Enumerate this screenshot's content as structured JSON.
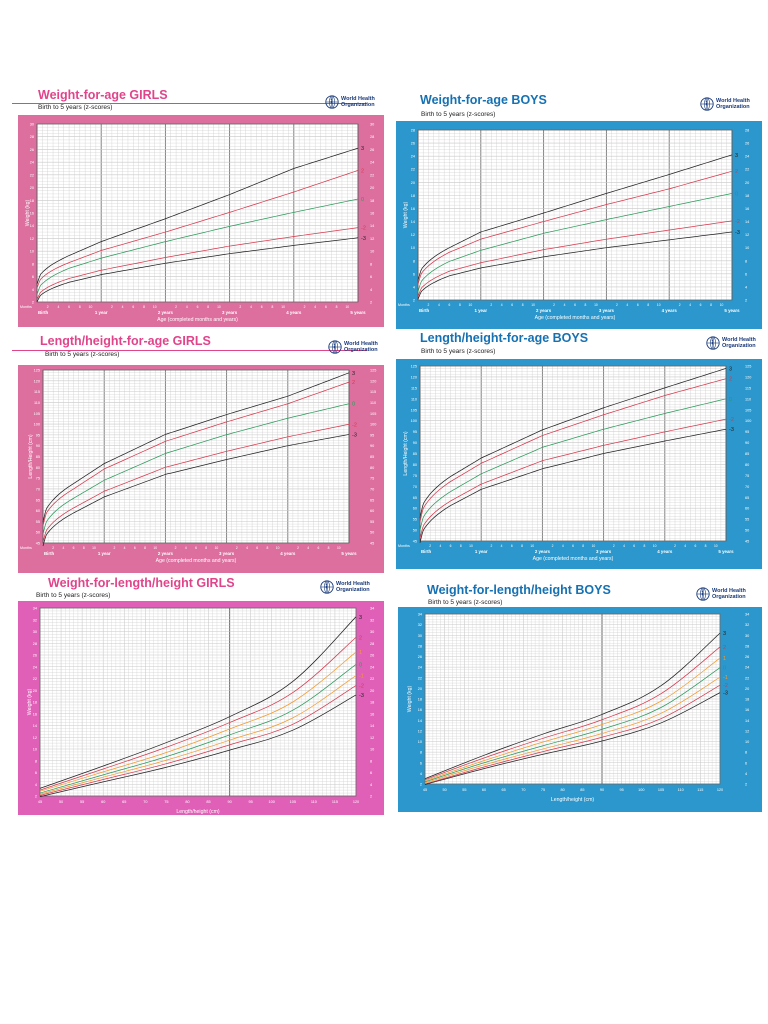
{
  "colors": {
    "girls_frame": "#dd6f9f",
    "girls_frame_wfl": "#e060b8",
    "boys_frame": "#2b97cc",
    "girls_title": "#e0458b",
    "boys_title": "#1671b3",
    "grid_minor": "#c8c8c8",
    "grid_major": "#777777",
    "line_3": "#222222",
    "line_2": "#d8384c",
    "line_1": "#f29a2e",
    "line_0": "#2a9a5a"
  },
  "logo_text": "World Health Organization",
  "logo_icon": "who-emblem-icon",
  "panels": [
    {
      "id": "wfa-girls",
      "title": "Weight-for-age GIRLS",
      "subtitle": "Birth to 5 years (z-scores)",
      "sex": "girls",
      "chart_data": {
        "type": "line",
        "title": "Weight-for-age GIRLS",
        "subtitle": "Birth to 5 years (z-scores)",
        "xlabel": "Age (completed months and years)",
        "ylabel": "Weight (kg)",
        "months_label": "Months",
        "year_labels": [
          "Birth",
          "1 year",
          "2 years",
          "3 years",
          "4 years",
          "5 years"
        ],
        "month_ticks": [
          "2",
          "4",
          "6",
          "8",
          "10",
          "2",
          "4",
          "6",
          "8",
          "10",
          "2",
          "4",
          "6",
          "8",
          "10",
          "2",
          "4",
          "6",
          "8",
          "10",
          "2",
          "4",
          "6",
          "8",
          "10"
        ],
        "xlim": [
          0,
          60
        ],
        "ylim": [
          2,
          30
        ],
        "yticks": [
          2,
          4,
          6,
          8,
          10,
          12,
          14,
          16,
          18,
          20,
          22,
          24,
          26,
          28,
          30
        ],
        "x": [
          0,
          6,
          12,
          24,
          36,
          48,
          60
        ],
        "series": [
          {
            "name": "3",
            "key": "line_3",
            "values": [
              4.8,
              9.3,
              11.5,
              15.1,
              18.9,
              23.0,
              26.2
            ]
          },
          {
            "name": "2",
            "key": "line_2",
            "values": [
              4.2,
              8.2,
              10.1,
              13.0,
              16.1,
              19.3,
              22.7
            ]
          },
          {
            "name": "0",
            "key": "line_0",
            "values": [
              3.2,
              7.3,
              8.9,
              11.5,
              13.9,
              16.1,
              18.2
            ]
          },
          {
            "name": "-2",
            "key": "line_2",
            "values": [
              2.4,
              5.7,
              7.0,
              9.0,
              10.8,
              12.3,
              13.7
            ]
          },
          {
            "name": "-3",
            "key": "line_3",
            "values": [
              2.0,
              5.1,
              6.3,
              8.1,
              9.6,
              10.9,
              12.1
            ]
          }
        ]
      }
    },
    {
      "id": "wfa-boys",
      "title": "Weight-for-age BOYS",
      "subtitle": "Birth to 5 years (z-scores)",
      "sex": "boys",
      "chart_data": {
        "type": "line",
        "title": "Weight-for-age BOYS",
        "subtitle": "Birth to 5 years (z-scores)",
        "xlabel": "Age (completed months and years)",
        "ylabel": "Weight (kg)",
        "months_label": "Months",
        "year_labels": [
          "Birth",
          "1 year",
          "2 years",
          "3 years",
          "4 years",
          "5 years"
        ],
        "month_ticks": [
          "2",
          "4",
          "6",
          "8",
          "10",
          "2",
          "4",
          "6",
          "8",
          "10",
          "2",
          "4",
          "6",
          "8",
          "10",
          "2",
          "4",
          "6",
          "8",
          "10",
          "2",
          "4",
          "6",
          "8",
          "10"
        ],
        "xlim": [
          0,
          60
        ],
        "ylim": [
          2,
          28
        ],
        "yticks": [
          2,
          4,
          6,
          8,
          10,
          12,
          14,
          16,
          18,
          20,
          22,
          24,
          26,
          28
        ],
        "x": [
          0,
          6,
          12,
          24,
          36,
          48,
          60
        ],
        "series": [
          {
            "name": "3",
            "key": "line_3",
            "values": [
              5.0,
              10.0,
              12.4,
              15.3,
              18.3,
              21.2,
              24.2
            ]
          },
          {
            "name": "2",
            "key": "line_2",
            "values": [
              4.4,
              9.3,
              11.3,
              14.0,
              16.6,
              19.0,
              21.7
            ]
          },
          {
            "name": "0",
            "key": "line_0",
            "values": [
              3.3,
              7.9,
              9.6,
              12.2,
              14.3,
              16.3,
              18.3
            ]
          },
          {
            "name": "-2",
            "key": "line_2",
            "values": [
              2.5,
              6.4,
              7.7,
              9.7,
              11.3,
              12.7,
              14.1
            ]
          },
          {
            "name": "-3",
            "key": "line_3",
            "values": [
              2.1,
              5.7,
              6.9,
              8.6,
              10.0,
              11.2,
              12.4
            ]
          }
        ]
      }
    },
    {
      "id": "lhfa-girls",
      "title": "Length/height-for-age GIRLS",
      "subtitle": "Birth to 5 years (z-scores)",
      "sex": "girls",
      "chart_data": {
        "type": "line",
        "title": "Length/height-for-age GIRLS",
        "subtitle": "Birth to 5 years (z-scores)",
        "xlabel": "Age (completed months and years)",
        "ylabel": "Length/Height (cm)",
        "months_label": "Months",
        "year_labels": [
          "Birth",
          "1 year",
          "2 years",
          "3 years",
          "4 years",
          "5 years"
        ],
        "month_ticks": [
          "2",
          "4",
          "6",
          "8",
          "10",
          "2",
          "4",
          "6",
          "8",
          "10",
          "2",
          "4",
          "6",
          "8",
          "10",
          "2",
          "4",
          "6",
          "8",
          "10",
          "2",
          "4",
          "6",
          "8",
          "10"
        ],
        "xlim": [
          0,
          60
        ],
        "ylim": [
          45,
          125
        ],
        "yticks": [
          45,
          50,
          55,
          60,
          65,
          70,
          75,
          80,
          85,
          90,
          95,
          100,
          105,
          110,
          115,
          120,
          125
        ],
        "x": [
          0,
          6,
          12,
          24,
          36,
          48,
          60
        ],
        "series": [
          {
            "name": "3",
            "key": "line_3",
            "values": [
              54.7,
              72.5,
              81.7,
              95.2,
              104.4,
              112.9,
              123.7
            ]
          },
          {
            "name": "2",
            "key": "line_2",
            "values": [
              53.0,
              70.0,
              79.2,
              92.0,
              101.0,
              109.4,
              119.4
            ]
          },
          {
            "name": "0",
            "key": "line_0",
            "values": [
              49.1,
              65.7,
              74.0,
              86.4,
              95.1,
              102.7,
              109.4
            ]
          },
          {
            "name": "-2",
            "key": "line_2",
            "values": [
              45.4,
              61.2,
              68.9,
              80.0,
              87.4,
              94.1,
              99.9
            ]
          },
          {
            "name": "-3",
            "key": "line_3",
            "values": [
              43.6,
              58.9,
              66.3,
              76.7,
              83.6,
              90.0,
              95.2
            ]
          }
        ]
      }
    },
    {
      "id": "lhfa-boys",
      "title": "Length/height-for-age BOYS",
      "subtitle": "Birth to 5 years (z-scores)",
      "sex": "boys",
      "chart_data": {
        "type": "line",
        "title": "Length/height-for-age BOYS",
        "subtitle": "Birth to 5 years (z-scores)",
        "xlabel": "Age (completed months and years)",
        "ylabel": "Length/Height (cm)",
        "months_label": "Months",
        "year_labels": [
          "Birth",
          "1 year",
          "2 years",
          "3 years",
          "4 years",
          "5 years"
        ],
        "month_ticks": [
          "2",
          "4",
          "6",
          "8",
          "10",
          "2",
          "4",
          "6",
          "8",
          "10",
          "2",
          "4",
          "6",
          "8",
          "10",
          "2",
          "4",
          "6",
          "8",
          "10",
          "2",
          "4",
          "6",
          "8",
          "10"
        ],
        "xlim": [
          0,
          60
        ],
        "ylim": [
          45,
          125
        ],
        "yticks": [
          45,
          50,
          55,
          60,
          65,
          70,
          75,
          80,
          85,
          90,
          95,
          100,
          105,
          110,
          115,
          120,
          125
        ],
        "x": [
          0,
          6,
          12,
          24,
          36,
          48,
          60
        ],
        "series": [
          {
            "name": "3",
            "key": "line_3",
            "values": [
              55.6,
              74.5,
              82.9,
              95.8,
              105.9,
              115.0,
              123.9
            ]
          },
          {
            "name": "2",
            "key": "line_2",
            "values": [
              53.7,
              72.2,
              80.5,
              93.2,
              102.7,
              111.5,
              119.2
            ]
          },
          {
            "name": "0",
            "key": "line_0",
            "values": [
              49.9,
              67.6,
              75.7,
              87.8,
              96.1,
              103.3,
              110.0
            ]
          },
          {
            "name": "-2",
            "key": "line_2",
            "values": [
              46.1,
              63.3,
              71.0,
              81.7,
              88.7,
              94.9,
              100.7
            ]
          },
          {
            "name": "-3",
            "key": "line_3",
            "values": [
              44.2,
              61.2,
              68.6,
              78.0,
              85.0,
              90.7,
              96.1
            ]
          }
        ]
      }
    },
    {
      "id": "wfl-girls",
      "title": "Weight-for-length/height  GIRLS",
      "subtitle": "Birth to 5 years (z-scores)",
      "sex": "girls",
      "chart_data": {
        "type": "line",
        "title": "Weight-for-length/height  GIRLS",
        "subtitle": "Birth to 5 years (z-scores)",
        "xlabel": "Length/height (cm)",
        "ylabel": "Weight (kg)",
        "xlim": [
          45,
          120
        ],
        "xticks": [
          45,
          50,
          55,
          60,
          65,
          70,
          75,
          80,
          85,
          90,
          95,
          100,
          105,
          110,
          115,
          120
        ],
        "ylim": [
          2,
          34
        ],
        "yticks": [
          2,
          4,
          6,
          8,
          10,
          12,
          14,
          16,
          18,
          20,
          22,
          24,
          26,
          28,
          30,
          32,
          34
        ],
        "x": [
          45,
          60,
          75,
          90,
          105,
          120
        ],
        "series": [
          {
            "name": "3",
            "key": "line_3",
            "values": [
              3.3,
              7.1,
              11.1,
              15.5,
              21.5,
              32.5
            ]
          },
          {
            "name": "2",
            "key": "line_2",
            "values": [
              3.0,
              6.6,
              10.3,
              14.5,
              19.6,
              29.0
            ]
          },
          {
            "name": "1",
            "key": "line_1",
            "values": [
              2.8,
              6.1,
              9.4,
              13.4,
              18.0,
              26.5
            ]
          },
          {
            "name": "0",
            "key": "line_0",
            "values": [
              2.5,
              5.6,
              8.7,
              12.4,
              16.6,
              24.4
            ]
          },
          {
            "name": "-1",
            "key": "line_1",
            "values": [
              2.3,
              5.2,
              8.1,
              11.5,
              15.3,
              22.5
            ]
          },
          {
            "name": "-2",
            "key": "line_2",
            "values": [
              2.1,
              4.8,
              7.5,
              10.7,
              14.2,
              20.8
            ]
          },
          {
            "name": "-3",
            "key": "line_3",
            "values": [
              1.9,
              4.4,
              6.9,
              9.8,
              13.2,
              19.2
            ]
          }
        ]
      }
    },
    {
      "id": "wfl-boys",
      "title": "Weight-for-length/height  BOYS",
      "subtitle": "Birth to 5 years (z-scores)",
      "sex": "boys",
      "chart_data": {
        "type": "line",
        "title": "Weight-for-length/height  BOYS",
        "subtitle": "Birth to 5 years (z-scores)",
        "xlabel": "Length/height (cm)",
        "ylabel": "Weight (kg)",
        "xlim": [
          45,
          120
        ],
        "xticks": [
          45,
          50,
          55,
          60,
          65,
          70,
          75,
          80,
          85,
          90,
          95,
          100,
          105,
          110,
          115,
          120
        ],
        "ylim": [
          2,
          34
        ],
        "yticks": [
          2,
          4,
          6,
          8,
          10,
          12,
          14,
          16,
          18,
          20,
          22,
          24,
          26,
          28,
          30,
          32,
          34
        ],
        "x": [
          45,
          60,
          75,
          90,
          105,
          120
        ],
        "series": [
          {
            "name": "3",
            "key": "line_3",
            "values": [
              3.0,
              7.4,
              11.4,
              15.1,
              20.5,
              30.4
            ]
          },
          {
            "name": "2",
            "key": "line_2",
            "values": [
              2.8,
              6.9,
              10.6,
              14.1,
              19.0,
              27.8
            ]
          },
          {
            "name": "1",
            "key": "line_1",
            "values": [
              2.6,
              6.4,
              9.9,
              13.2,
              17.6,
              25.7
            ]
          },
          {
            "name": "0",
            "key": "line_0",
            "values": [
              2.4,
              6.0,
              9.2,
              12.3,
              16.4,
              23.9
            ]
          },
          {
            "name": "-1",
            "key": "line_1",
            "values": [
              2.2,
              5.6,
              8.6,
              11.5,
              15.3,
              22.1
            ]
          },
          {
            "name": "-2",
            "key": "line_2",
            "values": [
              2.0,
              5.2,
              8.1,
              10.8,
              14.3,
              20.6
            ]
          },
          {
            "name": "-3",
            "key": "line_3",
            "values": [
              1.9,
              4.9,
              7.6,
              10.1,
              13.5,
              19.2
            ]
          }
        ]
      }
    }
  ]
}
